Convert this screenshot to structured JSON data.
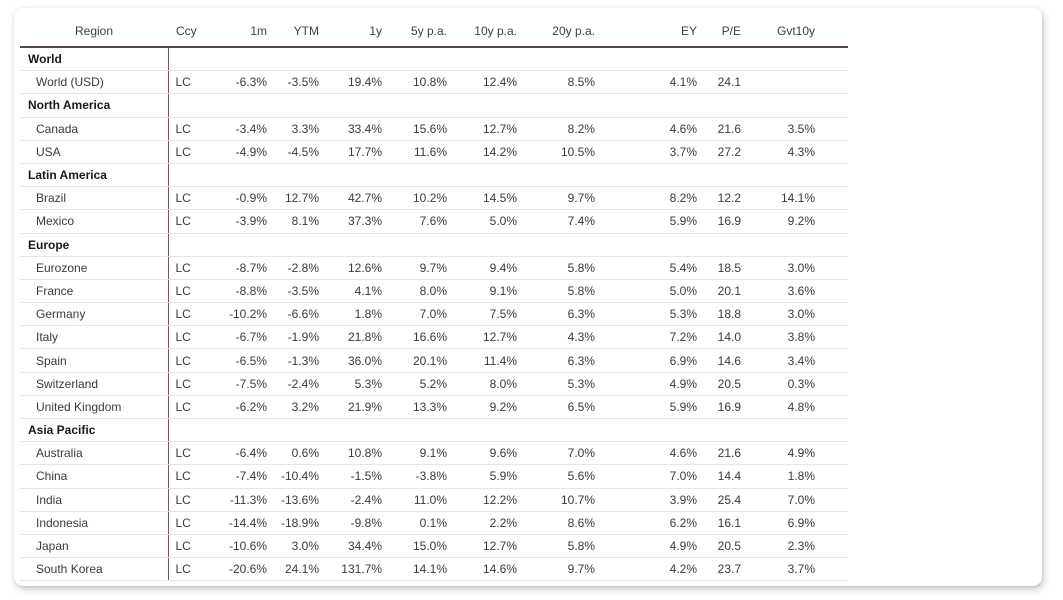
{
  "theme": {
    "accent_line": "#8e4a54",
    "header_rule": "#544549",
    "row_divider": "#eae3e5",
    "group_text": "#191919",
    "body_text": "#3a3a3a",
    "header_text": "#3f3f3f",
    "card_background": "#ffffff"
  },
  "table": {
    "columns": [
      {
        "label": "Region",
        "align": "center"
      },
      {
        "label": "Ccy",
        "align": "left"
      },
      {
        "label": "1m",
        "align": "right"
      },
      {
        "label": "YTM",
        "align": "right"
      },
      {
        "label": "1y",
        "align": "right"
      },
      {
        "label": "5y p.a.",
        "align": "right"
      },
      {
        "label": "10y p.a.",
        "align": "right"
      },
      {
        "label": "20y p.a.",
        "align": "right"
      },
      {
        "label": "EY",
        "align": "right"
      },
      {
        "label": "P/E",
        "align": "right"
      },
      {
        "label": "Gvt10y",
        "align": "right"
      }
    ],
    "groups": [
      {
        "label": "World",
        "rows": [
          {
            "region": "World (USD)",
            "cells": [
              "LC",
              "-6.3%",
              "-3.5%",
              "19.4%",
              "10.8%",
              "12.4%",
              "8.5%",
              "4.1%",
              "24.1",
              ""
            ]
          }
        ]
      },
      {
        "label": "North America",
        "rows": [
          {
            "region": "Canada",
            "cells": [
              "LC",
              "-3.4%",
              "3.3%",
              "33.4%",
              "15.6%",
              "12.7%",
              "8.2%",
              "4.6%",
              "21.6",
              "3.5%"
            ]
          },
          {
            "region": "USA",
            "cells": [
              "LC",
              "-4.9%",
              "-4.5%",
              "17.7%",
              "11.6%",
              "14.2%",
              "10.5%",
              "3.7%",
              "27.2",
              "4.3%"
            ]
          }
        ]
      },
      {
        "label": "Latin America",
        "rows": [
          {
            "region": "Brazil",
            "cells": [
              "LC",
              "-0.9%",
              "12.7%",
              "42.7%",
              "10.2%",
              "14.5%",
              "9.7%",
              "8.2%",
              "12.2",
              "14.1%"
            ]
          },
          {
            "region": "Mexico",
            "cells": [
              "LC",
              "-3.9%",
              "8.1%",
              "37.3%",
              "7.6%",
              "5.0%",
              "7.4%",
              "5.9%",
              "16.9",
              "9.2%"
            ]
          }
        ]
      },
      {
        "label": "Europe",
        "rows": [
          {
            "region": "Eurozone",
            "cells": [
              "LC",
              "-8.7%",
              "-2.8%",
              "12.6%",
              "9.7%",
              "9.4%",
              "5.8%",
              "5.4%",
              "18.5",
              "3.0%"
            ]
          },
          {
            "region": "France",
            "cells": [
              "LC",
              "-8.8%",
              "-3.5%",
              "4.1%",
              "8.0%",
              "9.1%",
              "5.8%",
              "5.0%",
              "20.1",
              "3.6%"
            ]
          },
          {
            "region": "Germany",
            "cells": [
              "LC",
              "-10.2%",
              "-6.6%",
              "1.8%",
              "7.0%",
              "7.5%",
              "6.3%",
              "5.3%",
              "18.8",
              "3.0%"
            ]
          },
          {
            "region": "Italy",
            "cells": [
              "LC",
              "-6.7%",
              "-1.9%",
              "21.8%",
              "16.6%",
              "12.7%",
              "4.3%",
              "7.2%",
              "14.0",
              "3.8%"
            ]
          },
          {
            "region": "Spain",
            "cells": [
              "LC",
              "-6.5%",
              "-1.3%",
              "36.0%",
              "20.1%",
              "11.4%",
              "6.3%",
              "6.9%",
              "14.6",
              "3.4%"
            ]
          },
          {
            "region": "Switzerland",
            "cells": [
              "LC",
              "-7.5%",
              "-2.4%",
              "5.3%",
              "5.2%",
              "8.0%",
              "5.3%",
              "4.9%",
              "20.5",
              "0.3%"
            ]
          },
          {
            "region": "United Kingdom",
            "cells": [
              "LC",
              "-6.2%",
              "3.2%",
              "21.9%",
              "13.3%",
              "9.2%",
              "6.5%",
              "5.9%",
              "16.9",
              "4.8%"
            ]
          }
        ]
      },
      {
        "label": "Asia Pacific",
        "rows": [
          {
            "region": "Australia",
            "cells": [
              "LC",
              "-6.4%",
              "0.6%",
              "10.8%",
              "9.1%",
              "9.6%",
              "7.0%",
              "4.6%",
              "21.6",
              "4.9%"
            ]
          },
          {
            "region": "China",
            "cells": [
              "LC",
              "-7.4%",
              "-10.4%",
              "-1.5%",
              "-3.8%",
              "5.9%",
              "5.6%",
              "7.0%",
              "14.4",
              "1.8%"
            ]
          },
          {
            "region": "India",
            "cells": [
              "LC",
              "-11.3%",
              "-13.6%",
              "-2.4%",
              "11.0%",
              "12.2%",
              "10.7%",
              "3.9%",
              "25.4",
              "7.0%"
            ]
          },
          {
            "region": "Indonesia",
            "cells": [
              "LC",
              "-14.4%",
              "-18.9%",
              "-9.8%",
              "0.1%",
              "2.2%",
              "8.6%",
              "6.2%",
              "16.1",
              "6.9%"
            ]
          },
          {
            "region": "Japan",
            "cells": [
              "LC",
              "-10.6%",
              "3.0%",
              "34.4%",
              "15.0%",
              "12.7%",
              "5.8%",
              "4.9%",
              "20.5",
              "2.3%"
            ]
          },
          {
            "region": "South Korea",
            "cells": [
              "LC",
              "-20.6%",
              "24.1%",
              "131.7%",
              "14.1%",
              "14.6%",
              "9.7%",
              "4.2%",
              "23.7",
              "3.7%"
            ]
          }
        ]
      }
    ]
  }
}
